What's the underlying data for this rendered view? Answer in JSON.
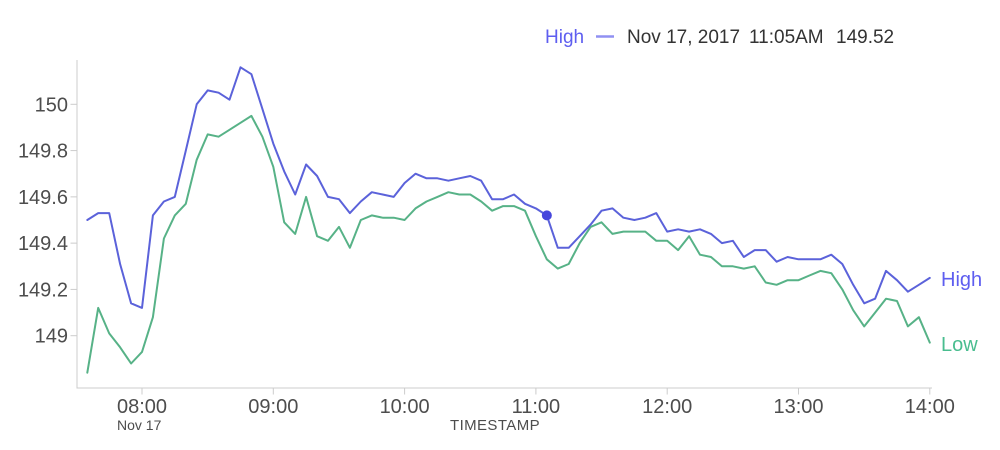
{
  "legend": {
    "series_label": "High",
    "hover_date": "Nov 17, 2017",
    "hover_time": "11:05AM",
    "hover_value": "149.52"
  },
  "series_end_labels": {
    "high": "High",
    "low": "Low"
  },
  "axes": {
    "x_title": "TIMESTAMP",
    "x_date_label": "Nov 17",
    "x_ticks": [
      "08:00",
      "09:00",
      "10:00",
      "11:00",
      "12:00",
      "13:00",
      "14:00"
    ],
    "y_ticks": [
      "150",
      "149.8",
      "149.6",
      "149.4",
      "149.2",
      "149"
    ]
  },
  "colors": {
    "high_line": "#5b62da",
    "high_label": "#5e5ef0",
    "legend_dash": "#9090f2",
    "low_line": "#57b287",
    "low_label": "#49bd8f",
    "dot": "#4646dc",
    "axis": "#cccccc",
    "hover_text": "#333333"
  },
  "chart_data": {
    "type": "line",
    "title": "",
    "xlabel": "TIMESTAMP",
    "ylabel": "",
    "x_date": "Nov 17, 2017",
    "grid": false,
    "legend_position": "top-right",
    "ylim": [
      148.77,
      150.19
    ],
    "x": [
      "07:35",
      "07:40",
      "07:45",
      "07:50",
      "07:55",
      "08:00",
      "08:05",
      "08:10",
      "08:15",
      "08:20",
      "08:25",
      "08:30",
      "08:35",
      "08:40",
      "08:45",
      "08:50",
      "08:55",
      "09:00",
      "09:05",
      "09:10",
      "09:15",
      "09:20",
      "09:25",
      "09:30",
      "09:35",
      "09:40",
      "09:45",
      "09:50",
      "09:55",
      "10:00",
      "10:05",
      "10:10",
      "10:15",
      "10:20",
      "10:25",
      "10:30",
      "10:35",
      "10:40",
      "10:45",
      "10:50",
      "10:55",
      "11:00",
      "11:05",
      "11:10",
      "11:15",
      "11:20",
      "11:25",
      "11:30",
      "11:35",
      "11:40",
      "11:45",
      "11:50",
      "11:55",
      "12:00",
      "12:05",
      "12:10",
      "12:15",
      "12:20",
      "12:25",
      "12:30",
      "12:35",
      "12:40",
      "12:45",
      "12:50",
      "12:55",
      "13:00",
      "13:05",
      "13:10",
      "13:15",
      "13:20",
      "13:25",
      "13:30",
      "13:35",
      "13:40",
      "13:45",
      "13:50",
      "13:55",
      "14:00"
    ],
    "series": [
      {
        "name": "High",
        "values": [
          149.5,
          149.53,
          149.53,
          149.31,
          149.14,
          149.12,
          149.52,
          149.58,
          149.6,
          149.8,
          150.0,
          150.06,
          150.05,
          150.02,
          150.16,
          150.13,
          149.98,
          149.83,
          149.71,
          149.61,
          149.74,
          149.69,
          149.6,
          149.59,
          149.53,
          149.58,
          149.62,
          149.61,
          149.6,
          149.66,
          149.7,
          149.68,
          149.68,
          149.67,
          149.68,
          149.69,
          149.67,
          149.59,
          149.59,
          149.61,
          149.57,
          149.55,
          149.52,
          149.38,
          149.38,
          149.43,
          149.48,
          149.54,
          149.55,
          149.51,
          149.5,
          149.51,
          149.53,
          149.45,
          149.46,
          149.45,
          149.46,
          149.44,
          149.4,
          149.41,
          149.34,
          149.37,
          149.37,
          149.32,
          149.34,
          149.33,
          149.33,
          149.33,
          149.35,
          149.31,
          149.22,
          149.14,
          149.16,
          149.28,
          149.24,
          149.19,
          149.22,
          149.25
        ]
      },
      {
        "name": "Low",
        "values": [
          148.84,
          149.12,
          149.01,
          148.95,
          148.88,
          148.93,
          149.08,
          149.42,
          149.52,
          149.57,
          149.76,
          149.87,
          149.86,
          149.89,
          149.92,
          149.95,
          149.86,
          149.73,
          149.49,
          149.44,
          149.6,
          149.43,
          149.41,
          149.47,
          149.38,
          149.5,
          149.52,
          149.51,
          149.51,
          149.5,
          149.55,
          149.58,
          149.6,
          149.62,
          149.61,
          149.61,
          149.58,
          149.54,
          149.56,
          149.56,
          149.54,
          149.43,
          149.33,
          149.29,
          149.31,
          149.4,
          149.47,
          149.49,
          149.44,
          149.45,
          149.45,
          149.45,
          149.41,
          149.41,
          149.37,
          149.43,
          149.35,
          149.34,
          149.3,
          149.3,
          149.29,
          149.3,
          149.23,
          149.22,
          149.24,
          149.24,
          149.26,
          149.28,
          149.27,
          149.2,
          149.11,
          149.04,
          149.1,
          149.16,
          149.15,
          149.04,
          149.08,
          148.97
        ]
      }
    ],
    "selected_point": {
      "series": "High",
      "x": "11:05",
      "y": 149.52
    }
  }
}
